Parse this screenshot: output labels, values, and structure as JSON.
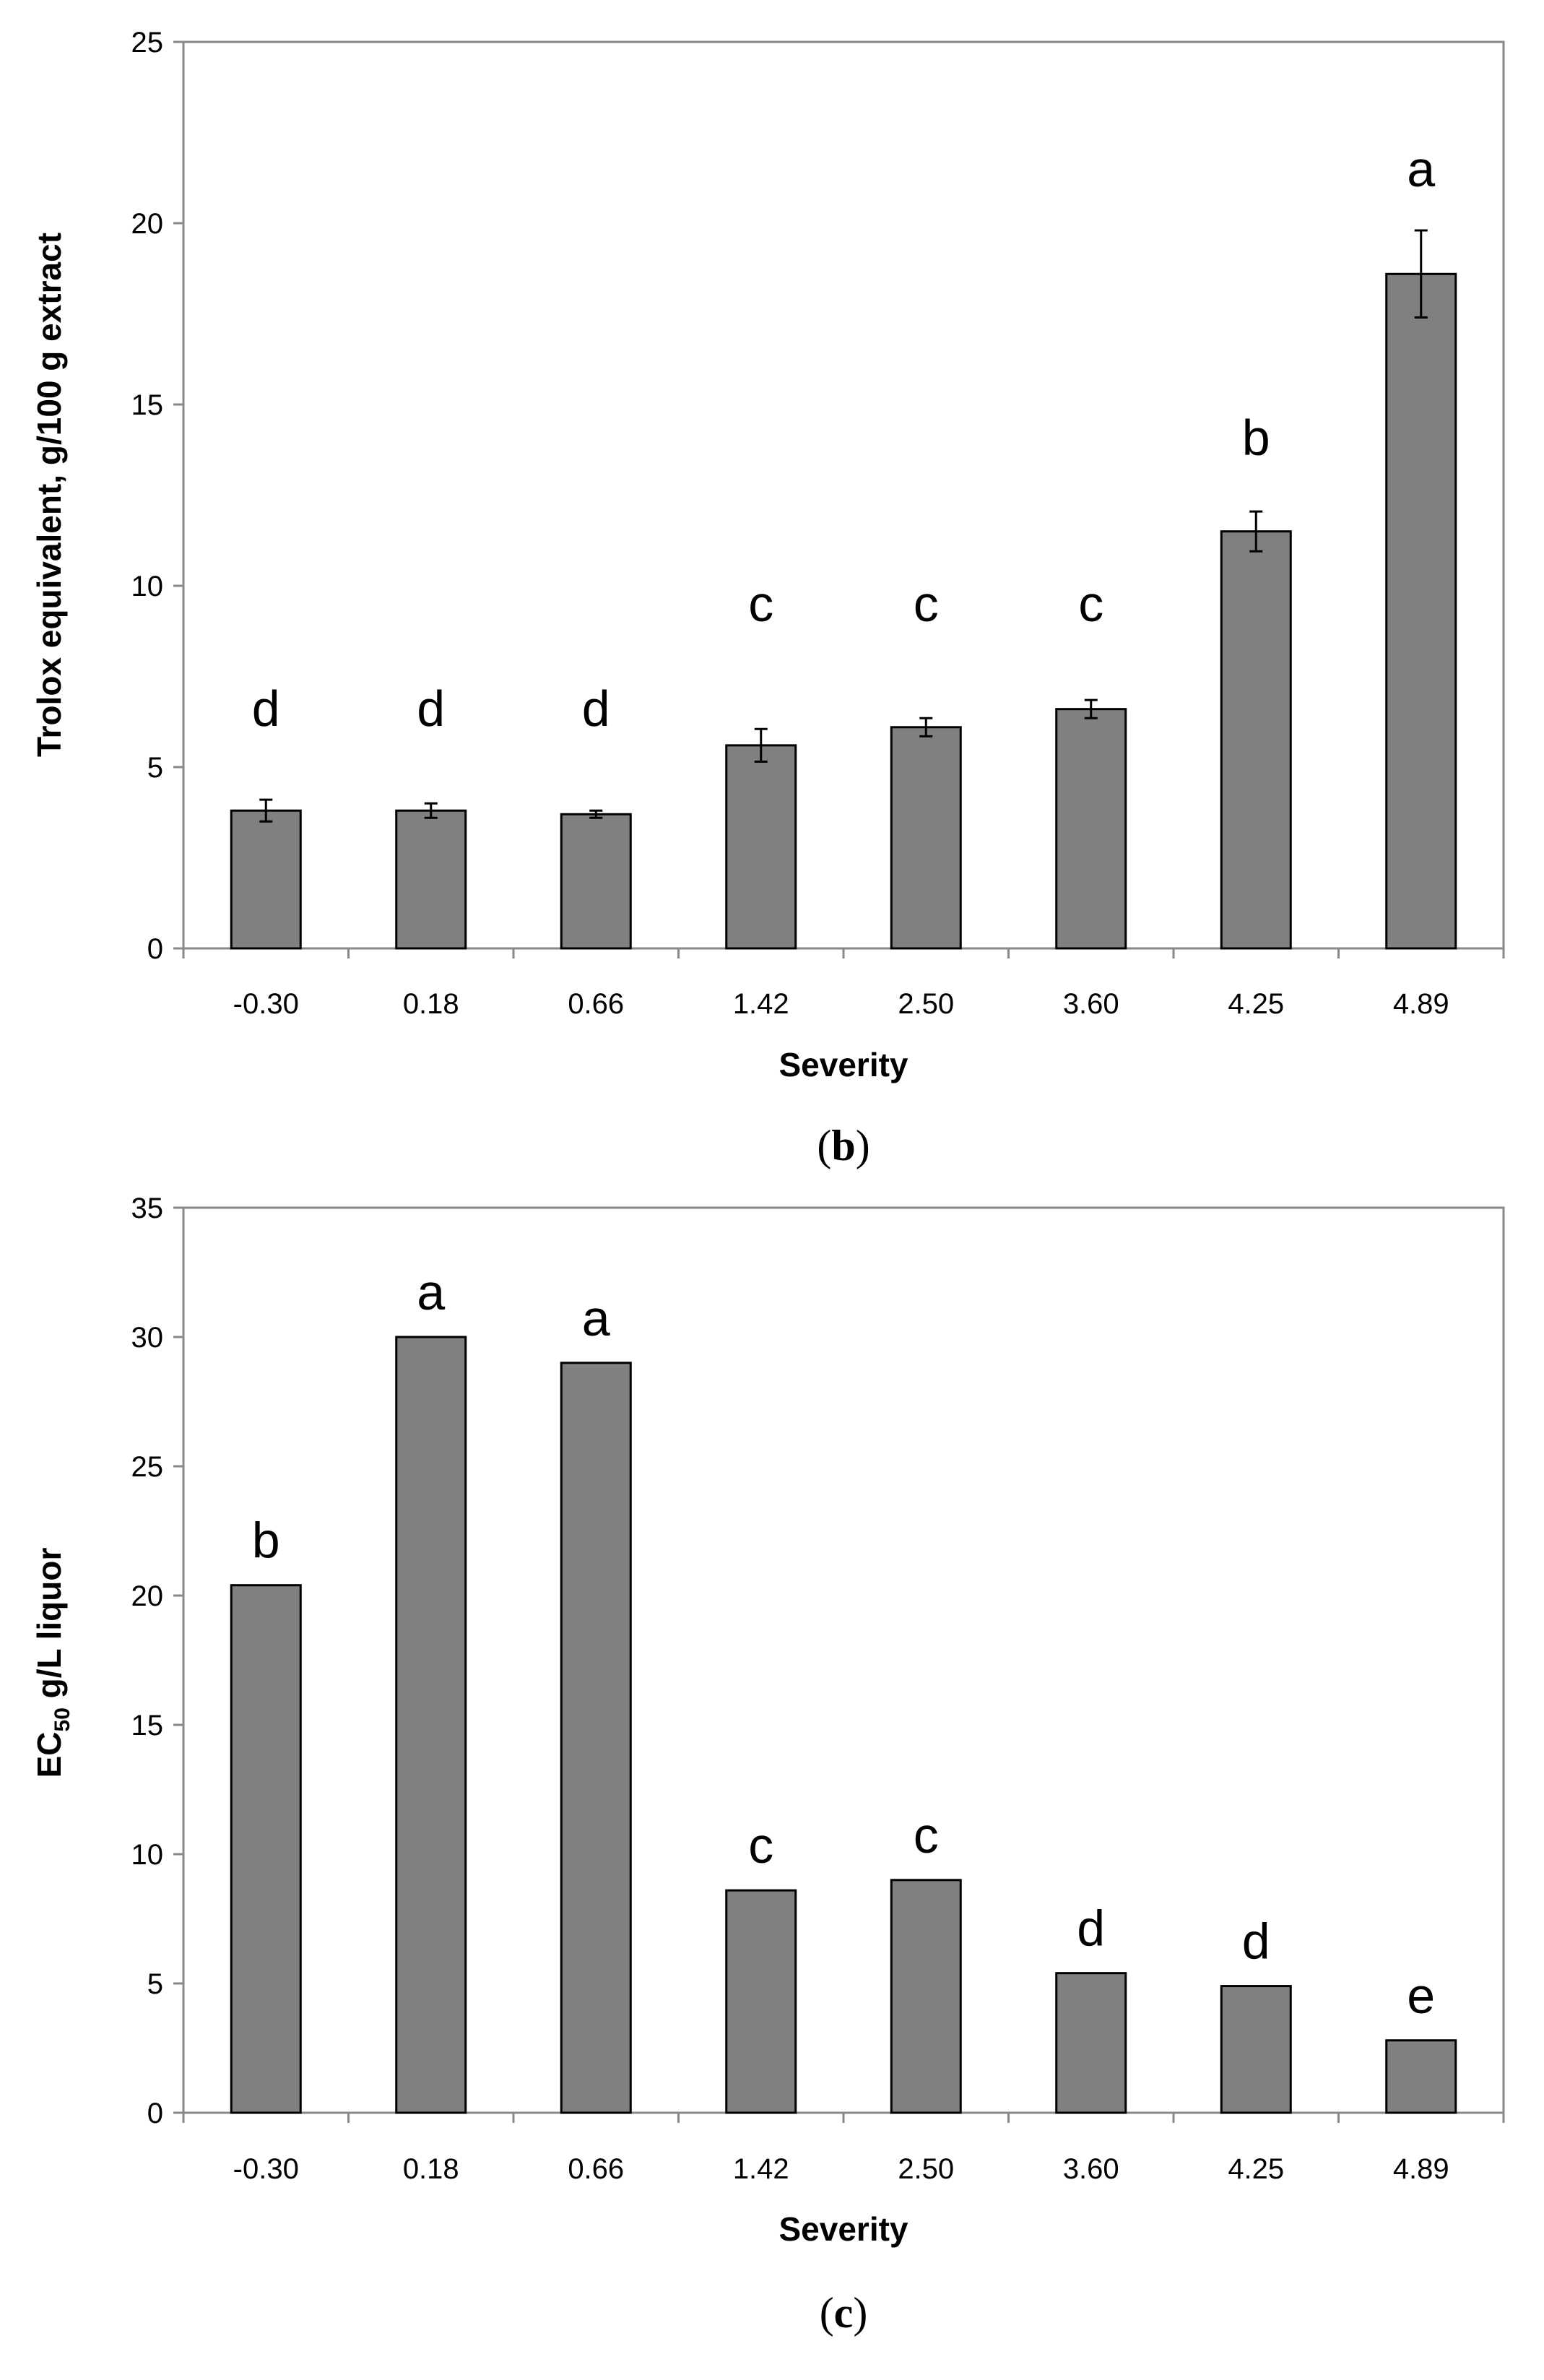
{
  "colors": {
    "bar_fill": "#808080",
    "bar_stroke": "#000000",
    "frame": "#888888",
    "axis": "#888888"
  },
  "chart_data": [
    {
      "type": "bar",
      "panel_label": "b",
      "title": "",
      "xlabel": "Severity",
      "ylabel": "Trolox equivalent, g/100 g extract",
      "ylim": [
        0,
        25
      ],
      "yticks": [
        0,
        5,
        10,
        15,
        20,
        25
      ],
      "categories": [
        "-0.30",
        "0.18",
        "0.66",
        "1.42",
        "2.50",
        "3.60",
        "4.25",
        "4.89"
      ],
      "values": [
        3.8,
        3.8,
        3.7,
        5.6,
        6.1,
        6.6,
        11.5,
        18.6
      ],
      "errors": [
        0.3,
        0.2,
        0.1,
        0.45,
        0.25,
        0.25,
        0.55,
        1.2
      ],
      "significance": [
        "d",
        "d",
        "d",
        "c",
        "c",
        "c",
        "b",
        "a"
      ],
      "grid": false,
      "legend": "none"
    },
    {
      "type": "bar",
      "panel_label": "c",
      "title": "",
      "xlabel": "Severity",
      "ylabel": {
        "prefix": "EC",
        "subscript": "50",
        "suffix": " g/L liquor"
      },
      "ylim": [
        0,
        35
      ],
      "yticks": [
        0,
        5,
        10,
        15,
        20,
        25,
        30,
        35
      ],
      "categories": [
        "-0.30",
        "0.18",
        "0.66",
        "1.42",
        "2.50",
        "3.60",
        "4.25",
        "4.89"
      ],
      "values": [
        20.4,
        30.0,
        29.0,
        8.6,
        9.0,
        5.4,
        4.9,
        2.8
      ],
      "significance": [
        "b",
        "a",
        "a",
        "c",
        "c",
        "d",
        "d",
        "e"
      ],
      "grid": false,
      "legend": "none"
    }
  ]
}
